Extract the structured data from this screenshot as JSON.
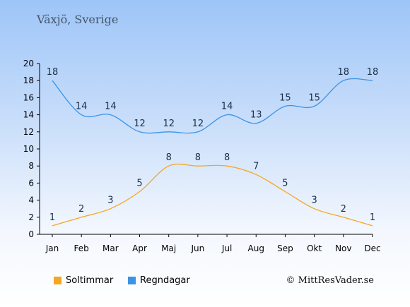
{
  "location": "Växjö, Sverige",
  "copyright": "© MittResVader.se",
  "colors": {
    "sun": "#f5a623",
    "rain": "#3b93e6"
  },
  "chart_data": {
    "type": "line",
    "categories": [
      "Jan",
      "Feb",
      "Mar",
      "Apr",
      "Maj",
      "Jun",
      "Jul",
      "Aug",
      "Sep",
      "Okt",
      "Nov",
      "Dec"
    ],
    "series": [
      {
        "name": "Soltimmar",
        "values": [
          1,
          2,
          3,
          5,
          8,
          8,
          8,
          7,
          5,
          3,
          2,
          1
        ]
      },
      {
        "name": "Regndagar",
        "values": [
          18,
          14,
          14,
          12,
          12,
          12,
          14,
          13,
          15,
          15,
          18,
          18
        ]
      }
    ],
    "yticks": [
      0,
      2,
      4,
      6,
      8,
      10,
      12,
      14,
      16,
      18,
      20
    ],
    "ylim": [
      0,
      20
    ],
    "grid": false,
    "legend_position": "bottom-left"
  }
}
